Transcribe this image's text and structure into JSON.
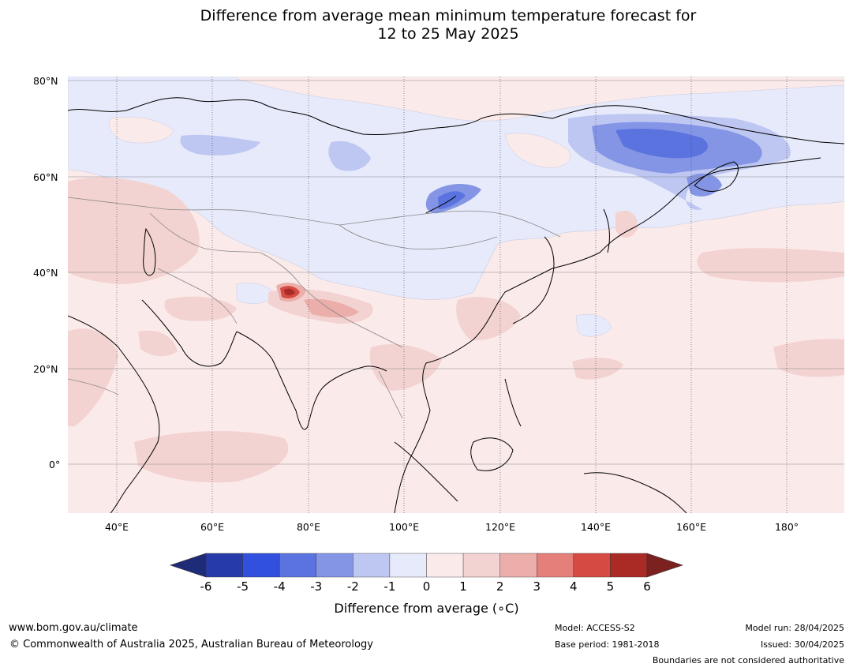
{
  "title_line1": "Difference from average mean minimum temperature forecast for",
  "title_line2": "12 to 25 May 2025",
  "lat_labels": [
    "80°N",
    "60°N",
    "40°N",
    "20°N",
    "0°"
  ],
  "lon_labels": [
    "40°E",
    "60°E",
    "80°E",
    "100°E",
    "120°E",
    "140°E",
    "160°E",
    "180°"
  ],
  "colorbar": {
    "label": "Difference from average (∘C)",
    "ticks": [
      "-6",
      "-5",
      "-4",
      "-3",
      "-2",
      "-1",
      "0",
      "1",
      "2",
      "3",
      "4",
      "5",
      "6"
    ],
    "colors": [
      "#273ba8",
      "#3050dd",
      "#5b73de",
      "#8595e6",
      "#bec6f2",
      "#e6eafb",
      "#fbeaea",
      "#f3d3d1",
      "#ebaeaa",
      "#e47f7a",
      "#d54a42",
      "#aa2a25"
    ],
    "under_color": "#1e2b76",
    "over_color": "#7b2220"
  },
  "footer": {
    "website": "www.bom.gov.au/climate",
    "copyright": "© Commonwealth of Australia 2025, Australian Bureau of Meteorology",
    "model": "Model: ACCESS-S2",
    "base_period": "Base period: 1981-2018",
    "model_run": "Model run: 28/04/2025",
    "issued": "Issued: 30/04/2025",
    "disclaimer": "Boundaries are not considered authoritative"
  }
}
